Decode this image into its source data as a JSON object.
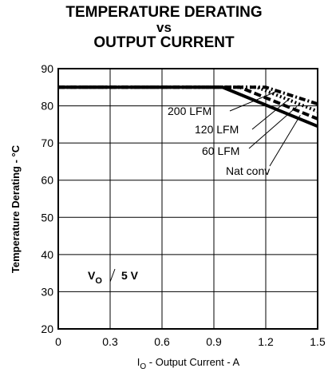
{
  "chart_data": {
    "type": "line",
    "title_lines": [
      "TEMPERATURE DERATING",
      "vs",
      "OUTPUT CURRENT"
    ],
    "xlabel": {
      "main": "I",
      "sub": "O",
      "rest": " - Output Current - A"
    },
    "ylabel": "Temperature Derating - °C",
    "xlim": [
      0,
      1.5
    ],
    "ylim": [
      20,
      90
    ],
    "x_ticks": [
      "0",
      "0.3",
      "0.6",
      "0.9",
      "1.2",
      "1.5"
    ],
    "y_ticks": [
      "20",
      "30",
      "40",
      "50",
      "60",
      "70",
      "80",
      "90"
    ],
    "grid": true,
    "condition": {
      "main": "V",
      "sub": "O",
      "value": "5 V"
    },
    "series": [
      {
        "name": "200 LFM",
        "style": "dash-dot",
        "x": [
          0,
          1.2,
          1.5
        ],
        "y": [
          85,
          85,
          80.5
        ]
      },
      {
        "name": "120 LFM",
        "style": "dotted",
        "x": [
          0,
          1.15,
          1.5
        ],
        "y": [
          85,
          85,
          78.5
        ]
      },
      {
        "name": "60 LFM",
        "style": "dashed",
        "x": [
          0,
          1.05,
          1.5
        ],
        "y": [
          85,
          85,
          76.5
        ]
      },
      {
        "name": "Nat conv",
        "style": "solid",
        "x": [
          0,
          0.95,
          1.5
        ],
        "y": [
          85,
          85,
          74.5
        ]
      }
    ]
  }
}
